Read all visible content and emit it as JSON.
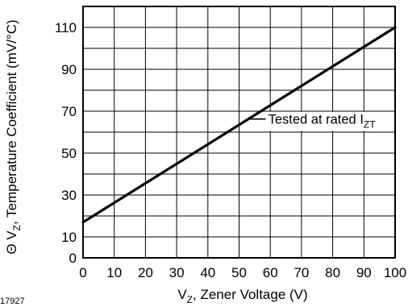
{
  "figure_id": "17927",
  "chart_data": {
    "type": "line",
    "xlabel": {
      "main": "V",
      "sub": "Z",
      "rest": ", Zener Voltage (V)"
    },
    "ylabel": {
      "prefix": "Θ V",
      "sub": "Z",
      "rest": ", Temperature Coefficient (mV/°C)"
    },
    "xlim": [
      0,
      100
    ],
    "ylim": [
      0,
      120
    ],
    "x_ticks": [
      0,
      10,
      20,
      30,
      40,
      50,
      60,
      70,
      80,
      90,
      100
    ],
    "y_ticks": [
      0,
      10,
      30,
      50,
      70,
      90,
      110
    ],
    "grid_x_step": 10,
    "grid_y_step": 10,
    "grid": true,
    "series": [
      {
        "x": [
          0,
          100
        ],
        "y": [
          17,
          110
        ],
        "color": "#000000"
      }
    ],
    "annotation": {
      "text": "Tested at rated I",
      "sub": "ZT",
      "x": 57,
      "y": 65
    }
  }
}
